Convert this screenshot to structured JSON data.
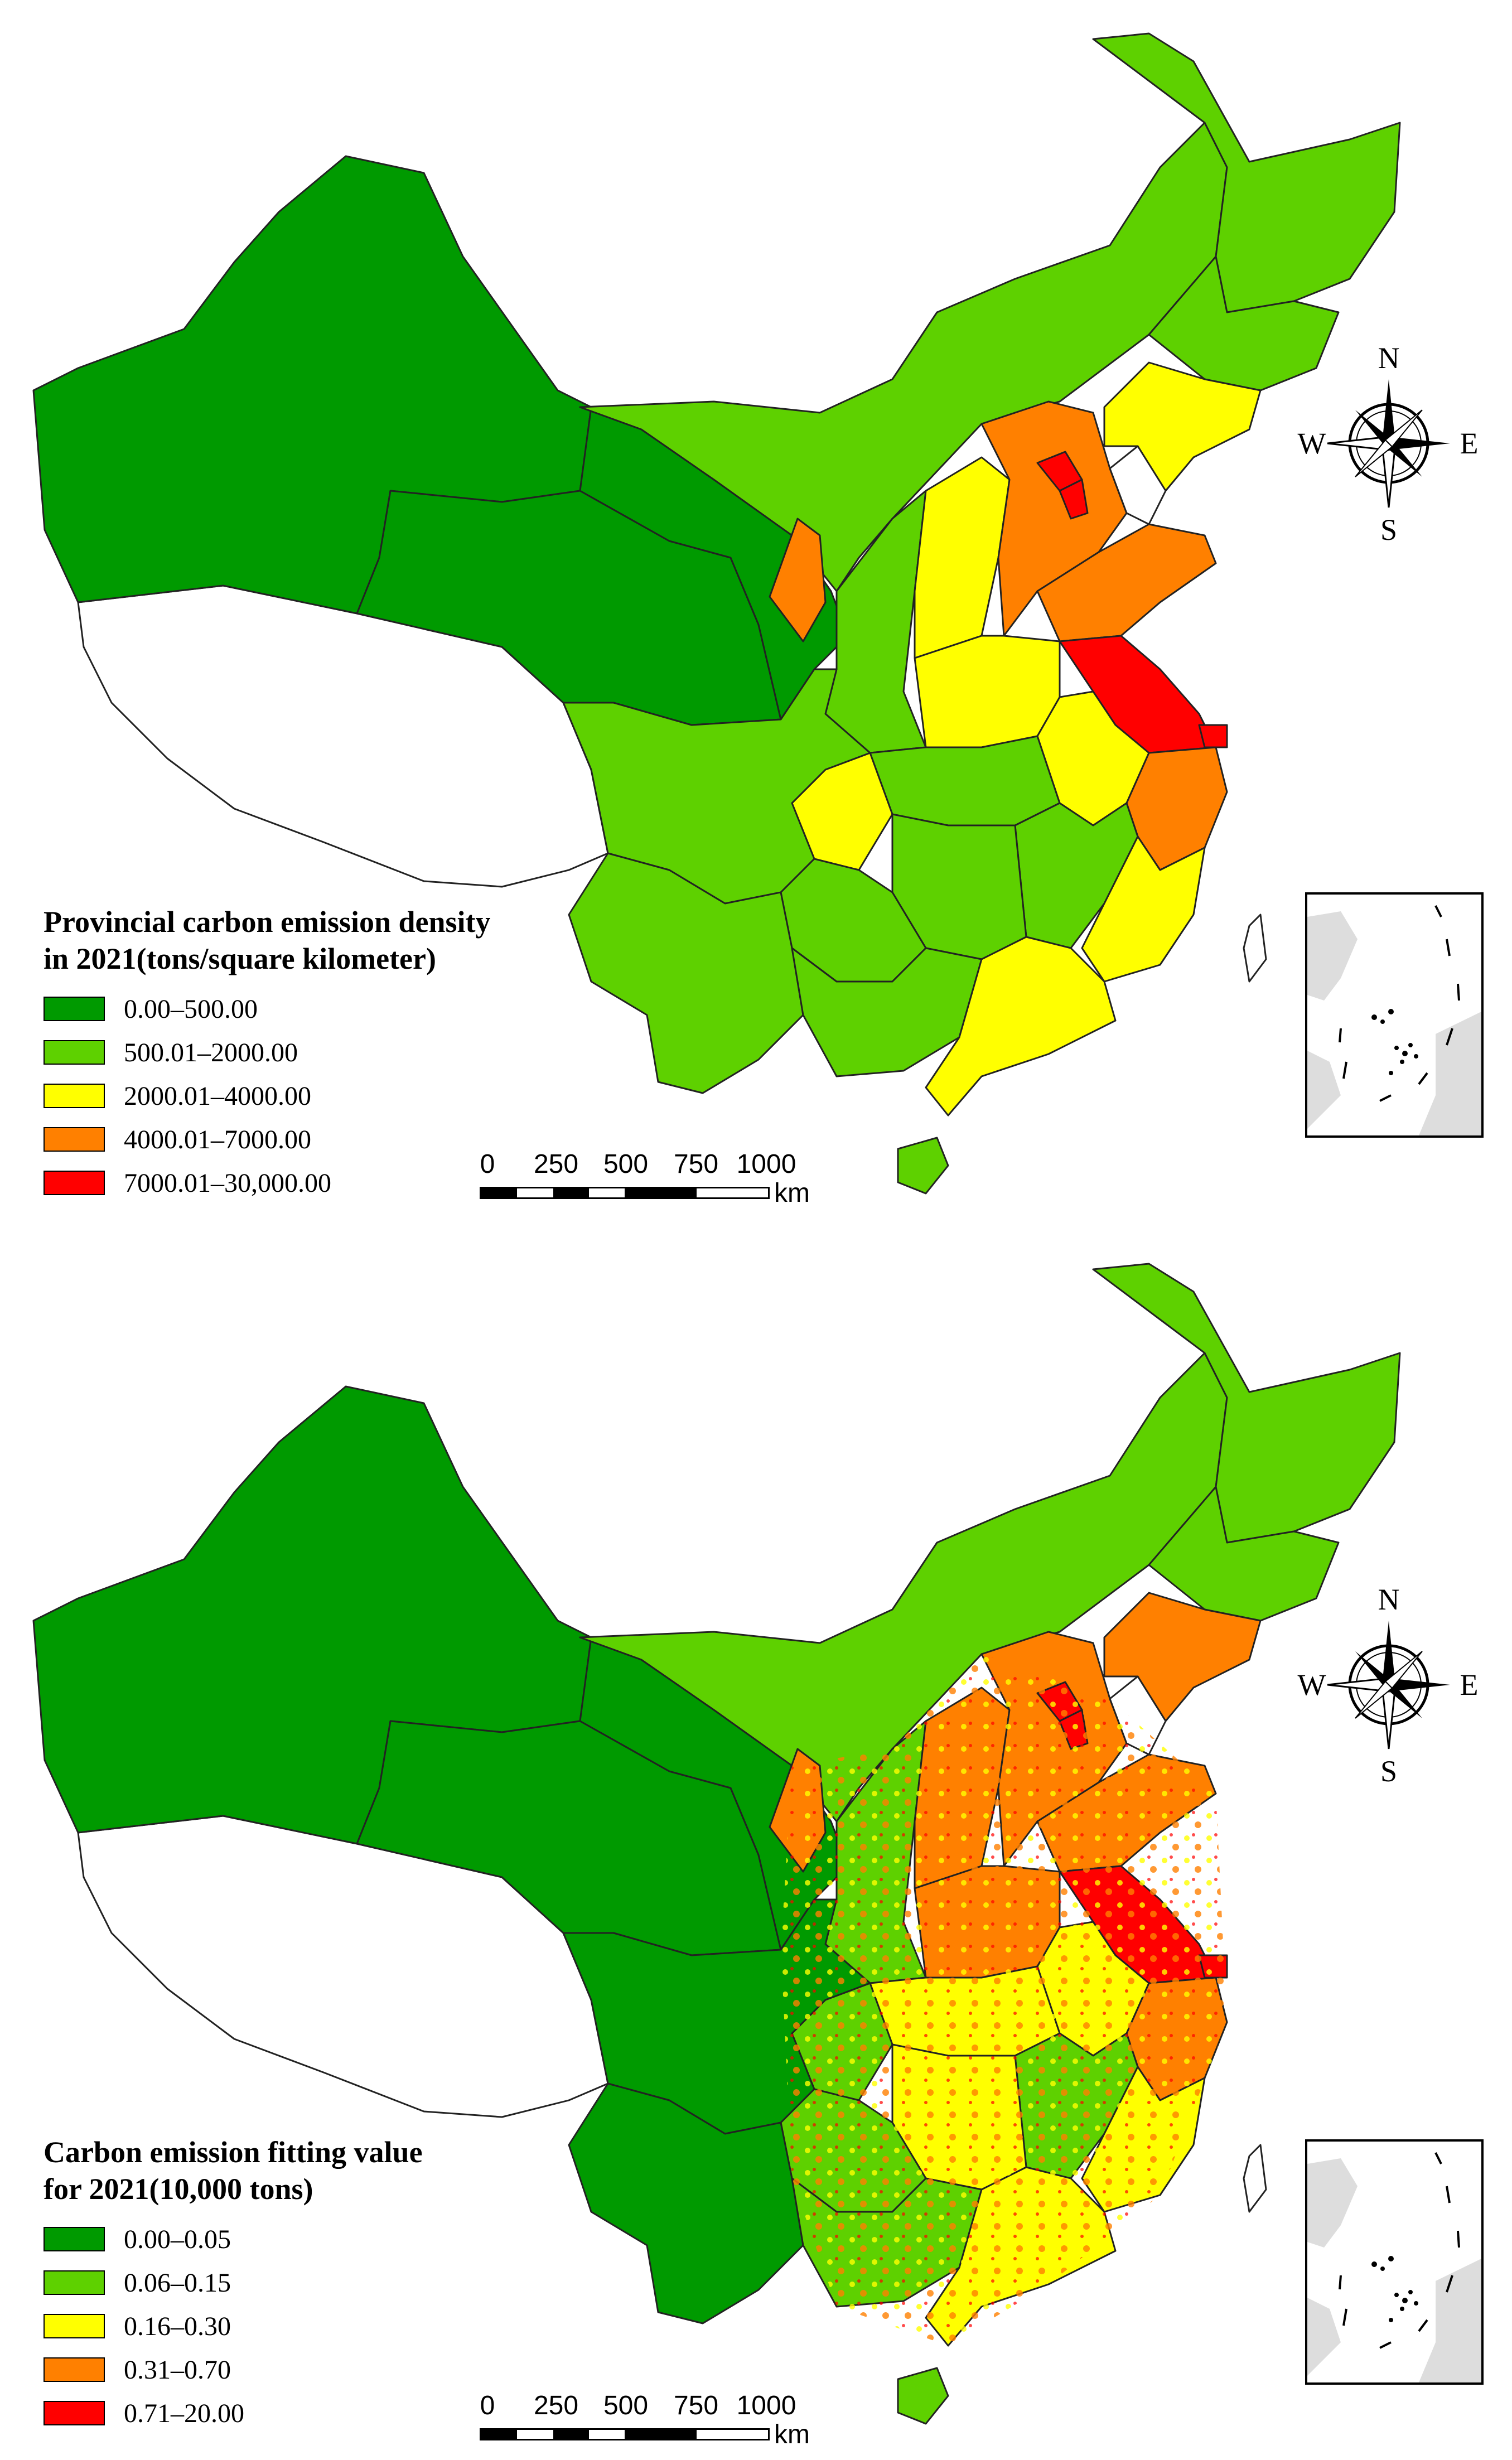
{
  "maps": [
    {
      "legend_title": "Provincial carbon emission density\nin 2021(tons/square kilometer)",
      "classes": [
        {
          "label": "0.00–500.00",
          "color": "#009a00"
        },
        {
          "label": "500.01–2000.00",
          "color": "#5ed100"
        },
        {
          "label": "2000.01–4000.00",
          "color": "#ffff00"
        },
        {
          "label": "4000.01–7000.00",
          "color": "#ff8000"
        },
        {
          "label": "7000.01–30,000.00",
          "color": "#ff0000"
        }
      ]
    },
    {
      "legend_title": "Carbon emission fitting value\nfor 2021(10,000 tons)",
      "classes": [
        {
          "label": "0.00–0.05",
          "color": "#009a00"
        },
        {
          "label": "0.06–0.15",
          "color": "#5ed100"
        },
        {
          "label": "0.16–0.30",
          "color": "#ffff00"
        },
        {
          "label": "0.31–0.70",
          "color": "#ff8000"
        },
        {
          "label": "0.71–20.00",
          "color": "#ff0000"
        }
      ]
    }
  ],
  "scale_bar": {
    "ticks": [
      "0",
      "250",
      "500",
      "750",
      "1000"
    ],
    "unit": "km"
  },
  "compass": {
    "n": "N",
    "s": "S",
    "e": "E",
    "w": "W",
    "icon": "compass-rose-icon"
  },
  "inset": {
    "icon": "south-china-sea-inset"
  }
}
